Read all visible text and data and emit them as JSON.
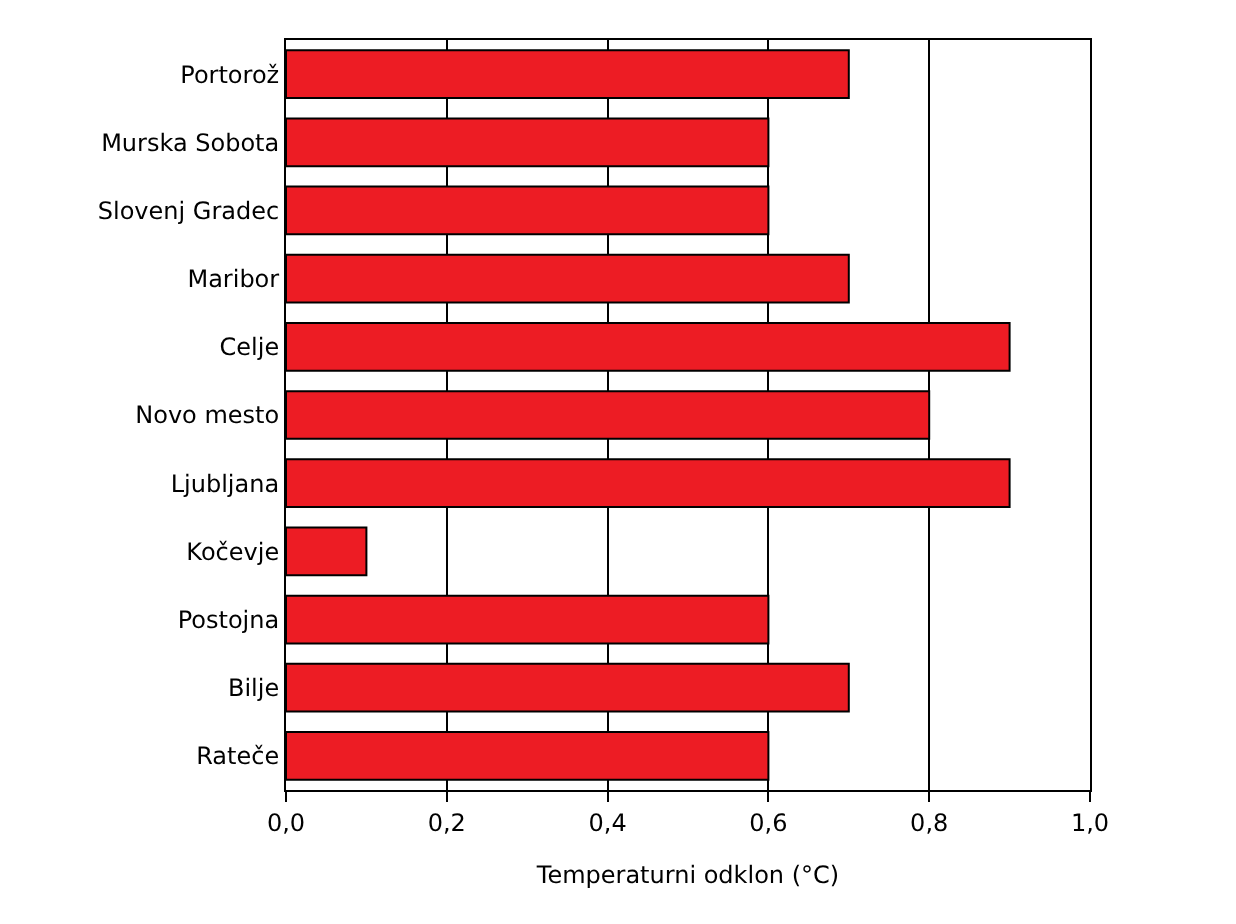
{
  "chart_data": {
    "type": "bar",
    "orientation": "horizontal",
    "xlabel": "Temperaturni odklon (°C)",
    "categories": [
      "Portorož",
      "Murska Sobota",
      "Slovenj Gradec",
      "Maribor",
      "Celje",
      "Novo mesto",
      "Ljubljana",
      "Kočevje",
      "Postojna",
      "Bilje",
      "Rateče"
    ],
    "values": [
      0.7,
      0.6,
      0.6,
      0.7,
      0.9,
      0.8,
      0.9,
      0.1,
      0.6,
      0.7,
      0.6
    ],
    "color": "#ed1c24",
    "xlim": [
      0,
      1
    ],
    "xticks": [
      {
        "value": 0,
        "label": "0,0"
      },
      {
        "value": 0.2,
        "label": "0,2"
      },
      {
        "value": 0.4,
        "label": "0,4"
      },
      {
        "value": 0.6,
        "label": "0,6"
      },
      {
        "value": 0.8,
        "label": "0,8"
      },
      {
        "value": 1,
        "label": "1,0"
      }
    ],
    "grid": "x"
  }
}
